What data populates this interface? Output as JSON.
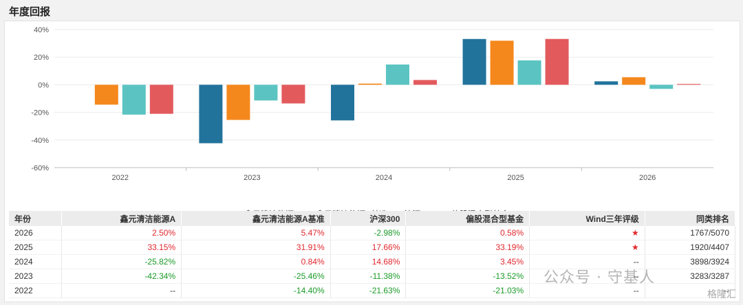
{
  "title": "年度回报",
  "chart_data": {
    "type": "bar",
    "categories": [
      "2022",
      "2023",
      "2024",
      "2025",
      "2026"
    ],
    "ylim": [
      -60,
      40
    ],
    "yticks": [
      40,
      20,
      0,
      -20,
      -40,
      -60
    ],
    "ytick_labels": [
      "40%",
      "20%",
      "0%",
      "-20%",
      "-40%",
      "-60%"
    ],
    "grid": true,
    "legend_position": "bottom",
    "series": [
      {
        "name": "鑫元清洁能源A",
        "color": "#21739c",
        "values": [
          null,
          -42.34,
          -25.82,
          33.15,
          2.5
        ]
      },
      {
        "name": "鑫元清洁能源A基准",
        "color": "#f5881c",
        "values": [
          -14.4,
          -25.46,
          0.84,
          31.91,
          5.47
        ]
      },
      {
        "name": "沪深300",
        "color": "#5bc4c2",
        "values": [
          -21.63,
          -11.38,
          14.68,
          17.66,
          -2.98
        ]
      },
      {
        "name": "偏股混合型基金",
        "color": "#e35a5d",
        "values": [
          -21.03,
          -13.52,
          3.45,
          33.19,
          0.58
        ]
      }
    ]
  },
  "table": {
    "headers": [
      "年份",
      "鑫元清洁能源A",
      "鑫元清洁能源A基准",
      "沪深300",
      "偏股混合型基金",
      "Wind三年评级",
      "同类排名"
    ],
    "rows": [
      {
        "year": "2026",
        "a": "2.50%",
        "bench": "5.47%",
        "hs300": "-2.98%",
        "mix": "0.58%",
        "rating": "★",
        "rank": "1767/5070"
      },
      {
        "year": "2025",
        "a": "33.15%",
        "bench": "31.91%",
        "hs300": "17.66%",
        "mix": "33.19%",
        "rating": "★",
        "rank": "1920/4407"
      },
      {
        "year": "2024",
        "a": "-25.82%",
        "bench": "0.84%",
        "hs300": "14.68%",
        "mix": "3.45%",
        "rating": "--",
        "rank": "3898/3924"
      },
      {
        "year": "2023",
        "a": "-42.34%",
        "bench": "-25.46%",
        "hs300": "-11.38%",
        "mix": "-13.52%",
        "rating": "--",
        "rank": "3283/3287"
      },
      {
        "year": "2022",
        "a": "--",
        "bench": "-14.40%",
        "hs300": "-21.63%",
        "mix": "-21.03%",
        "rating": "--",
        "rank": "--"
      }
    ]
  },
  "watermark": "公众号 · 守基人",
  "watermark2": "格隆汇"
}
